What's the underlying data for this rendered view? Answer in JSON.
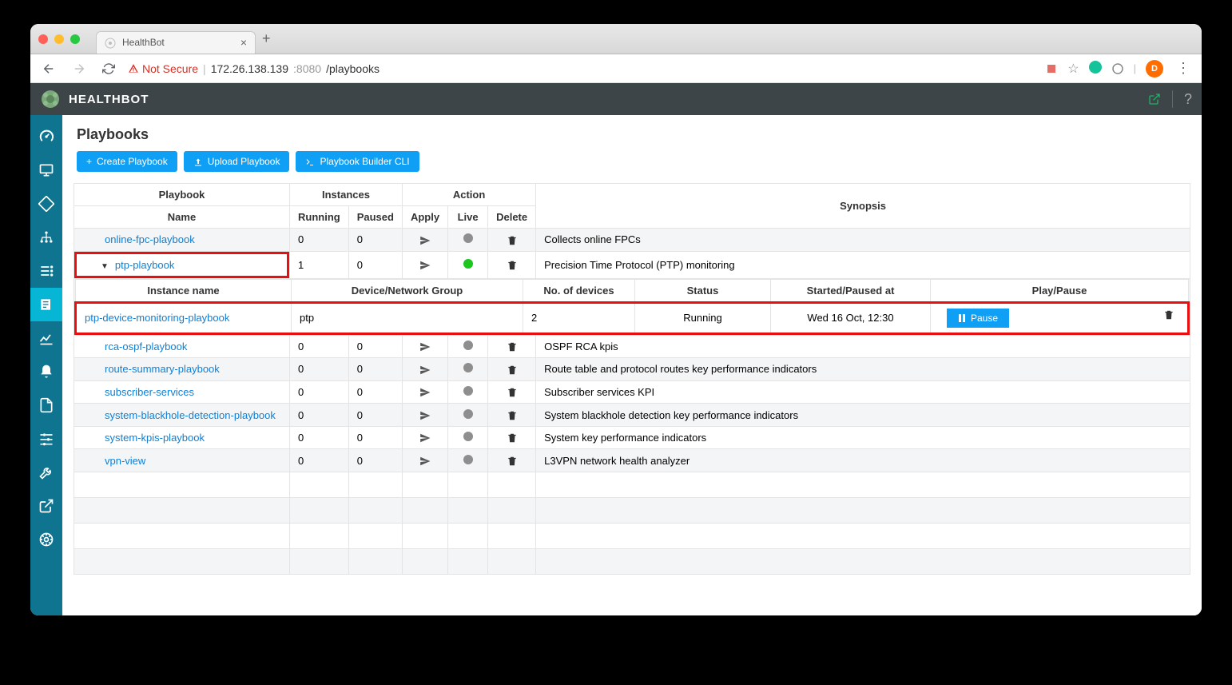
{
  "browser": {
    "tab_title": "HealthBot",
    "not_secure": "Not Secure",
    "url_host": "172.26.138.139",
    "url_port": ":8080",
    "url_path": "/playbooks",
    "avatar_initial": "D"
  },
  "topbar": {
    "brand": "HEALTHBOT"
  },
  "page": {
    "title": "Playbooks"
  },
  "buttons": {
    "create": "Create Playbook",
    "upload": "Upload Playbook",
    "cli": "Playbook Builder CLI"
  },
  "headers": {
    "playbook": "Playbook",
    "instances": "Instances",
    "action": "Action",
    "name": "Name",
    "running": "Running",
    "paused": "Paused",
    "apply": "Apply",
    "live": "Live",
    "delete": "Delete",
    "synopsis": "Synopsis"
  },
  "instance_headers": {
    "instance_name": "Instance name",
    "group": "Device/Network Group",
    "devices": "No. of devices",
    "status": "Status",
    "started": "Started/Paused at",
    "playpause": "Play/Pause"
  },
  "rows": [
    {
      "name": "online-fpc-playbook",
      "running": "0",
      "paused": "0",
      "live": "gray",
      "synopsis": "Collects online FPCs",
      "expanded": false,
      "highlight": false
    },
    {
      "name": "ptp-playbook",
      "running": "1",
      "paused": "0",
      "live": "green",
      "synopsis": "Precision Time Protocol (PTP) monitoring",
      "expanded": true,
      "highlight": true
    }
  ],
  "instance": {
    "name": "ptp-device-monitoring-playbook",
    "group": "ptp",
    "devices": "2",
    "status": "Running",
    "started": "Wed 16 Oct, 12:30",
    "pause": "Pause"
  },
  "rows_after": [
    {
      "name": "rca-ospf-playbook",
      "running": "0",
      "paused": "0",
      "live": "gray",
      "synopsis": "OSPF RCA kpis"
    },
    {
      "name": "route-summary-playbook",
      "running": "0",
      "paused": "0",
      "live": "gray",
      "synopsis": "Route table and protocol routes key performance indicators"
    },
    {
      "name": "subscriber-services",
      "running": "0",
      "paused": "0",
      "live": "gray",
      "synopsis": "Subscriber services KPI"
    },
    {
      "name": "system-blackhole-detection-playbook",
      "running": "0",
      "paused": "0",
      "live": "gray",
      "synopsis": "System blackhole detection key performance indicators"
    },
    {
      "name": "system-kpis-playbook",
      "running": "0",
      "paused": "0",
      "live": "gray",
      "synopsis": "System key performance indicators"
    },
    {
      "name": "vpn-view",
      "running": "0",
      "paused": "0",
      "live": "gray",
      "synopsis": "L3VPN network health analyzer"
    }
  ],
  "colors": {
    "sidebar_bg": "#0e7490",
    "sidebar_active": "#06b6d4",
    "button_blue": "#0f9ff5",
    "highlight_red": "#e71010",
    "link_blue": "#0f80d6"
  }
}
